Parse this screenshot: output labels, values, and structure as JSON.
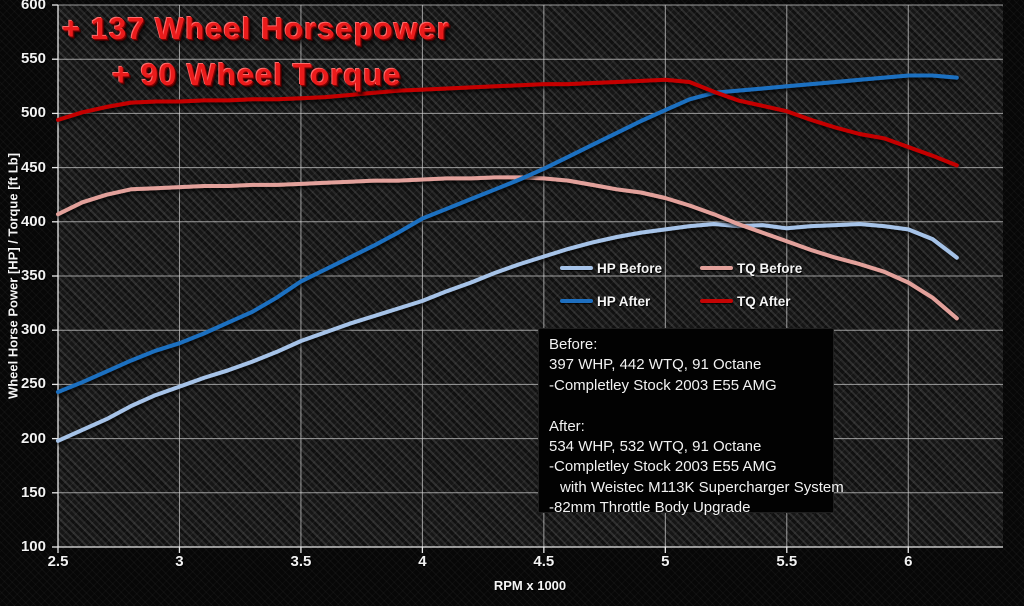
{
  "title": {
    "line1": "+ 137 Wheel Horsepower",
    "line2": "+ 90 Wheel Torque"
  },
  "info_box": {
    "lines": [
      "Before:",
      "397 WHP, 442 WTQ, 91 Octane",
      "-Completley Stock 2003 E55 AMG",
      "",
      "After:",
      "534 WHP, 532 WTQ, 91 Octane",
      "-Completley Stock 2003 E55 AMG",
      "with Weistec M113K Supercharger System",
      "-82mm Throttle Body Upgrade"
    ]
  },
  "chart_data": {
    "type": "line",
    "title": "+ 137 Wheel Horsepower / + 90 Wheel Torque",
    "xlabel": "RPM x 1000",
    "ylabel": "Wheel Horse Power [HP] / Torque [ft Lb]",
    "xlim": [
      2.5,
      6.39
    ],
    "ylim": [
      100,
      600
    ],
    "x_ticks": [
      2.5,
      3,
      3.5,
      4,
      4.5,
      5,
      5.5,
      6
    ],
    "x_tick_labels": [
      "2.5",
      "3",
      "3.5",
      "4",
      "4.5",
      "5",
      "5.5",
      "6"
    ],
    "y_ticks": [
      100,
      150,
      200,
      250,
      300,
      350,
      400,
      450,
      500,
      550,
      600
    ],
    "y_tick_labels": [
      "100",
      "150",
      "200",
      "250",
      "300",
      "350",
      "400",
      "450",
      "500",
      "550",
      "600"
    ],
    "grid": true,
    "legend_position": "inside-middle-right",
    "x": [
      2.5,
      2.6,
      2.7,
      2.8,
      2.9,
      3.0,
      3.1,
      3.2,
      3.3,
      3.4,
      3.5,
      3.6,
      3.7,
      3.8,
      3.9,
      4.0,
      4.1,
      4.2,
      4.3,
      4.4,
      4.5,
      4.6,
      4.7,
      4.8,
      4.9,
      5.0,
      5.1,
      5.2,
      5.3,
      5.4,
      5.5,
      5.6,
      5.7,
      5.8,
      5.9,
      6.0,
      6.1,
      6.2
    ],
    "series": [
      {
        "name": "HP Before",
        "color": "#a6c3e8",
        "values": [
          198,
          208,
          218,
          230,
          240,
          248,
          256,
          263,
          271,
          280,
          290,
          298,
          306,
          313,
          320,
          327,
          336,
          344,
          353,
          361,
          368,
          375,
          381,
          386,
          390,
          393,
          396,
          398,
          396,
          397,
          394,
          396,
          397,
          398,
          396,
          393,
          384,
          367
        ]
      },
      {
        "name": "TQ Before",
        "color": "#e2a19b",
        "values": [
          407,
          418,
          425,
          430,
          431,
          432,
          433,
          433,
          434,
          434,
          435,
          436,
          437,
          438,
          438,
          439,
          440,
          440,
          441,
          441,
          440,
          438,
          434,
          430,
          427,
          422,
          415,
          407,
          398,
          390,
          382,
          374,
          367,
          361,
          354,
          344,
          330,
          311
        ]
      },
      {
        "name": "HP After",
        "color": "#1e6fc0",
        "values": [
          243,
          252,
          262,
          272,
          281,
          288,
          297,
          307,
          317,
          330,
          345,
          356,
          367,
          378,
          390,
          403,
          412,
          421,
          430,
          439,
          449,
          460,
          471,
          482,
          493,
          503,
          513,
          519,
          521,
          523,
          525,
          527,
          529,
          531,
          533,
          535,
          535,
          533
        ]
      },
      {
        "name": "TQ After",
        "color": "#c40404",
        "values": [
          494,
          501,
          506,
          510,
          511,
          511,
          512,
          512,
          513,
          513,
          514,
          515,
          517,
          519,
          521,
          522,
          523,
          524,
          525,
          526,
          527,
          527,
          528,
          529,
          530,
          531,
          529,
          520,
          512,
          507,
          502,
          494,
          487,
          481,
          477,
          469,
          461,
          452
        ]
      }
    ],
    "colors": {
      "grid": "#c9c9c9",
      "axis": "#e8e8e8",
      "plot_background": "#1f1f1f",
      "outer_background": "#070707",
      "title_red": "#ea1b1b",
      "text": "#f2f2f2",
      "info_box_background": "#020202"
    }
  }
}
